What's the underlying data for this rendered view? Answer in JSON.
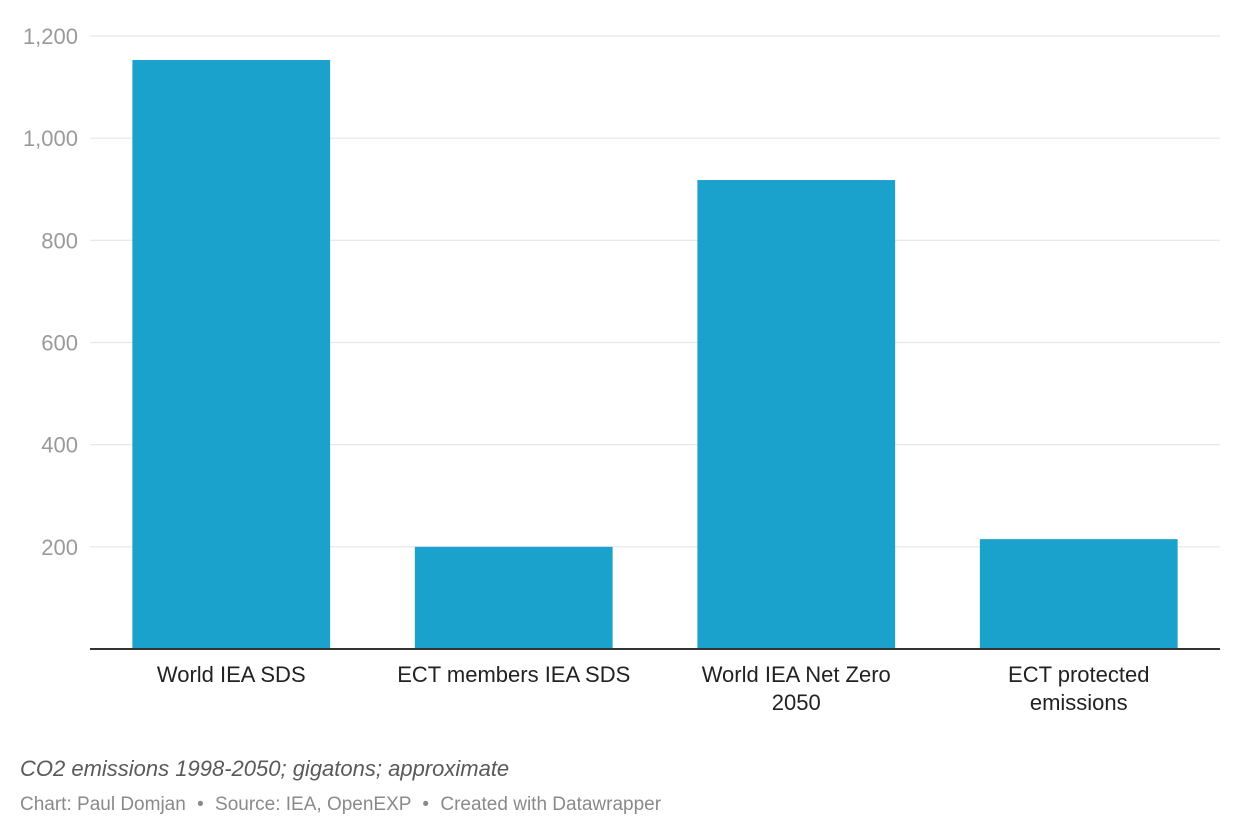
{
  "chart_data": {
    "type": "bar",
    "categories": [
      [
        "World IEA SDS"
      ],
      [
        "ECT members IEA SDS"
      ],
      [
        "World IEA Net Zero",
        "2050"
      ],
      [
        "ECT protected",
        "emissions"
      ]
    ],
    "values": [
      1153,
      200,
      918,
      215
    ],
    "ylim": [
      0,
      1200
    ],
    "yticks": [
      200,
      400,
      600,
      800,
      1000,
      1200
    ],
    "ytick_labels": [
      "200",
      "400",
      "600",
      "800",
      "1,000",
      "1,200"
    ],
    "grid": true,
    "colors": {
      "bar": "#1aa1cc",
      "grid": "#e6e6e6",
      "axis": "#333333",
      "tick_text": "#9a9a9a",
      "label_text": "#222222"
    }
  },
  "notes": "CO2 emissions 1998-2050; gigatons; approximate",
  "credits": {
    "chart": "Chart: Paul Domjan",
    "source": "Source: IEA, OpenEXP",
    "tool": "Created with Datawrapper",
    "separator": "•"
  }
}
